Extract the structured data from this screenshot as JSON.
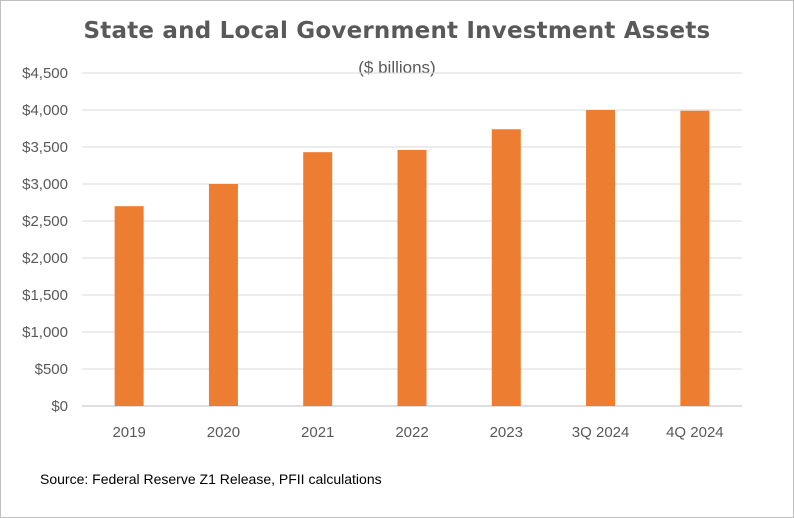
{
  "colors": {
    "bar": "#ED7D31",
    "grid": "#d9d9d9",
    "axis": "#bfbfbf",
    "text": "#595959"
  },
  "chart_data": {
    "type": "bar",
    "title": "State and Local Government Investment Assets",
    "subtitle": "($ billions)",
    "categories": [
      "2019",
      "2020",
      "2021",
      "2022",
      "2023",
      "3Q 2024",
      "4Q 2024"
    ],
    "values": [
      2700,
      3000,
      3430,
      3460,
      3740,
      4000,
      3990
    ],
    "ylim": [
      0,
      4500
    ],
    "yticks": [
      "$0",
      "$500",
      "$1,000",
      "$1,500",
      "$2,000",
      "$2,500",
      "$3,000",
      "$3,500",
      "$4,000",
      "$4,500"
    ],
    "ytick_values": [
      0,
      500,
      1000,
      1500,
      2000,
      2500,
      3000,
      3500,
      4000,
      4500
    ],
    "grid": true,
    "legend": "none"
  },
  "source_note": "Source: Federal Reserve Z1 Release, PFII calculations"
}
